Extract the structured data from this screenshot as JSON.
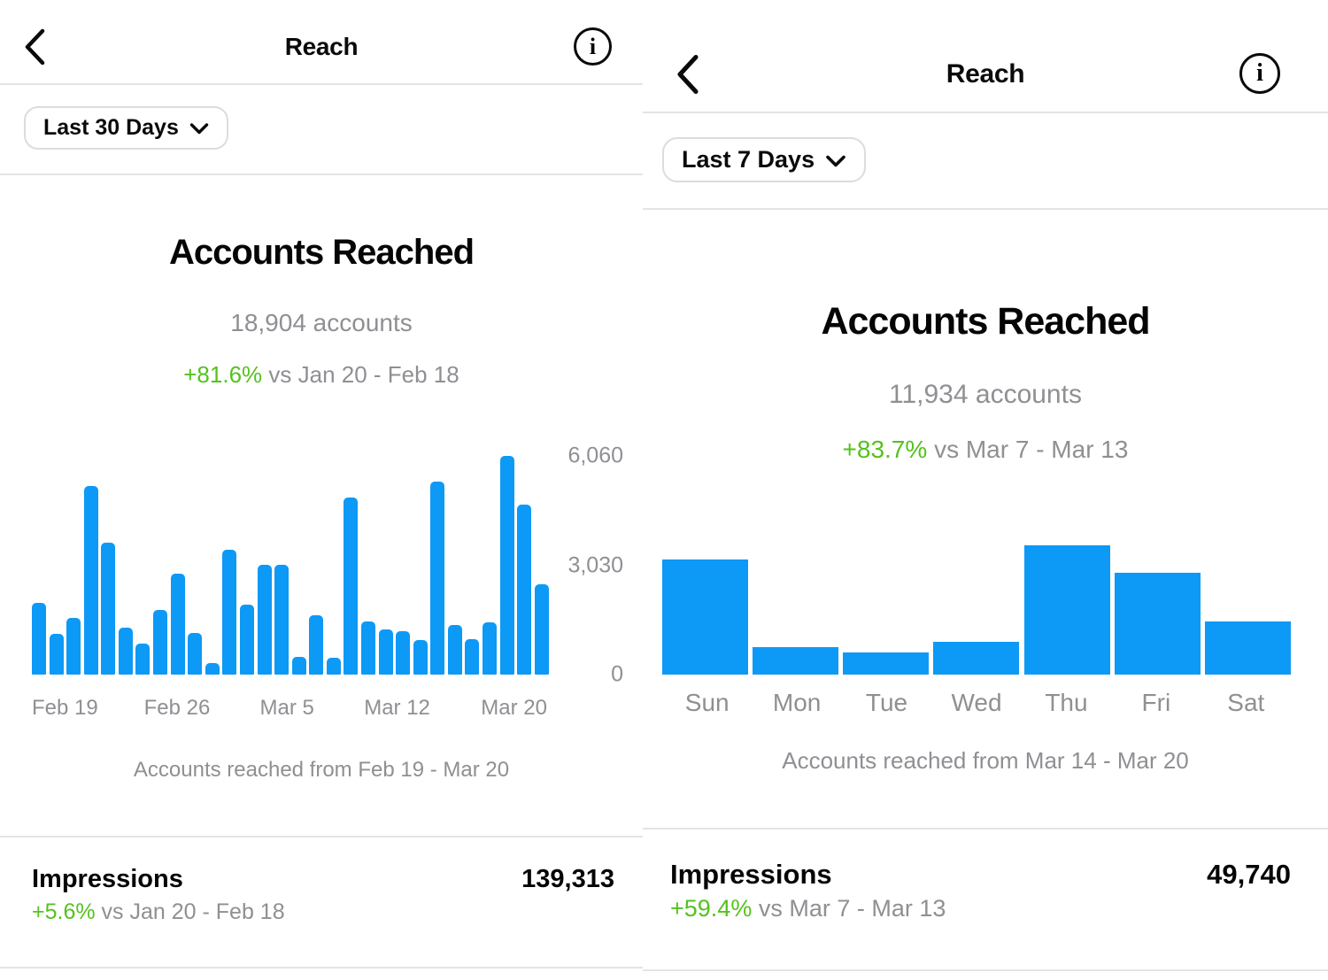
{
  "colors": {
    "bar_blue": "#0d99f6",
    "positive_green": "#54c21d",
    "muted_gray": "#8f8f94",
    "divider_gray": "#e4e4e6",
    "text_black": "#0a0a0a"
  },
  "left": {
    "title": "Reach",
    "range": "Last 30 Days",
    "section_title": "Accounts Reached",
    "accounts_line": "18,904 accounts",
    "delta_pct": "+81.6%",
    "delta_compare": "vs Jan 20 - Feb 18",
    "caption": "Accounts reached from Feb 19 - Mar 20",
    "impressions_label": "Impressions",
    "impressions_value": "139,313",
    "impressions_delta_pct": "+5.6%",
    "impressions_delta_compare": "vs Jan 20 - Feb 18"
  },
  "right": {
    "title": "Reach",
    "range": "Last 7 Days",
    "section_title": "Accounts Reached",
    "accounts_line": "11,934 accounts",
    "delta_pct": "+83.7%",
    "delta_compare": "vs Mar 7 - Mar 13",
    "caption": "Accounts reached from Mar 14 - Mar 20",
    "impressions_label": "Impressions",
    "impressions_value": "49,740",
    "impressions_delta_pct": "+59.4%",
    "impressions_delta_compare": "vs Mar 7 - Mar 13"
  },
  "chart_data": [
    {
      "type": "bar",
      "title": "Accounts Reached — Last 30 Days (daily, values estimated from bar heights)",
      "categories": [
        "Feb 19",
        "Feb 20",
        "Feb 21",
        "Feb 22",
        "Feb 23",
        "Feb 24",
        "Feb 25",
        "Feb 26",
        "Feb 27",
        "Feb 28",
        "Mar 1",
        "Mar 2",
        "Mar 3",
        "Mar 4",
        "Mar 5",
        "Mar 6",
        "Mar 7",
        "Mar 8",
        "Mar 9",
        "Mar 10",
        "Mar 11",
        "Mar 12",
        "Mar 13",
        "Mar 14",
        "Mar 15",
        "Mar 16",
        "Mar 17",
        "Mar 18",
        "Mar 19",
        "Mar 20"
      ],
      "values": [
        2000,
        1130,
        1560,
        5230,
        3650,
        1300,
        860,
        1800,
        2800,
        1160,
        310,
        3450,
        1930,
        3040,
        3050,
        490,
        1650,
        470,
        4910,
        1480,
        1260,
        1200,
        960,
        5360,
        1380,
        980,
        1450,
        6060,
        4720,
        2510
      ],
      "ylim": [
        0,
        6060
      ],
      "grid": false,
      "bar_color": "#0d99f6",
      "y_ticks": [
        {
          "value": 0,
          "label": "0"
        },
        {
          "value": 3030,
          "label": "3,030"
        },
        {
          "value": 6060,
          "label": "6,060"
        }
      ],
      "x_ticks": [
        {
          "index": 0,
          "label": "Feb 19",
          "align": "start"
        },
        {
          "index": 7,
          "label": "Feb 26",
          "dx": 18
        },
        {
          "index": 14,
          "label": "Mar 5",
          "dx": 6
        },
        {
          "index": 21,
          "label": "Mar 12",
          "dx": -6
        },
        {
          "index": 29,
          "label": "Mar 20",
          "align": "end"
        }
      ]
    },
    {
      "type": "bar",
      "title": "Accounts Reached — Last 7 Days (daily, values estimated from bar heights)",
      "categories": [
        "Sun",
        "Mon",
        "Tue",
        "Wed",
        "Thu",
        "Fri",
        "Sat"
      ],
      "values": [
        2850,
        680,
        540,
        810,
        3210,
        2520,
        1320
      ],
      "ylim": [
        0,
        3300
      ],
      "grid": false,
      "bar_color": "#0d99f6",
      "y_ticks": [],
      "x_ticks": [
        {
          "index": 0,
          "label": "Sun"
        },
        {
          "index": 1,
          "label": "Mon"
        },
        {
          "index": 2,
          "label": "Tue"
        },
        {
          "index": 3,
          "label": "Wed"
        },
        {
          "index": 4,
          "label": "Thu"
        },
        {
          "index": 5,
          "label": "Fri"
        },
        {
          "index": 6,
          "label": "Sat"
        }
      ]
    }
  ]
}
